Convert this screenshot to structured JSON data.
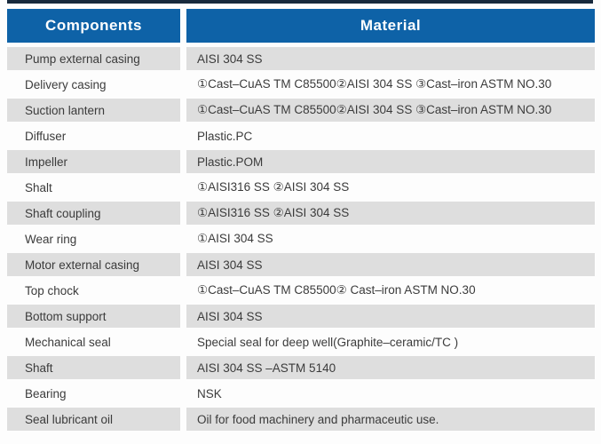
{
  "colors": {
    "header_bg": "#0e62a7",
    "header_text": "#ffffff",
    "row_shade_bg": "#dedede",
    "row_plain_bg": "#fdfdfd",
    "body_text": "#3b3b3b",
    "top_line": "#17293c"
  },
  "table": {
    "headers": [
      "Components",
      "Material"
    ],
    "rows": [
      {
        "component": "Pump external casing",
        "material": "AISI 304 SS"
      },
      {
        "component": "Delivery casing",
        "material": "①Cast–CuAS TM C85500②AISI 304 SS ③Cast–iron ASTM NO.30"
      },
      {
        "component": "Suction lantern",
        "material": "①Cast–CuAS TM C85500②AISI 304 SS ③Cast–iron ASTM NO.30"
      },
      {
        "component": "Diffuser",
        "material": "Plastic.PC"
      },
      {
        "component": "Impeller",
        "material": "Plastic.POM"
      },
      {
        "component": "Shalt",
        "material": "①AISI316 SS ②AISI 304 SS"
      },
      {
        "component": "Shaft coupling",
        "material": "①AISI316 SS ②AISI 304 SS"
      },
      {
        "component": "Wear ring",
        "material": "①AISI 304 SS"
      },
      {
        "component": "Motor external casing",
        "material": "AISI 304 SS"
      },
      {
        "component": "Top chock",
        "material": "①Cast–CuAS TM C85500② Cast–iron ASTM NO.30"
      },
      {
        "component": "Bottom support",
        "material": "AISI 304 SS"
      },
      {
        "component": "Mechanical seal",
        "material": "Special seal for deep well(Graphite–ceramic/TC )"
      },
      {
        "component": "Shaft",
        "material": "AISI 304 SS –ASTM 5140"
      },
      {
        "component": "Bearing",
        "material": "NSK"
      },
      {
        "component": "Seal lubricant oil",
        "material": "Oil for food machinery and pharmaceutic use."
      }
    ]
  }
}
